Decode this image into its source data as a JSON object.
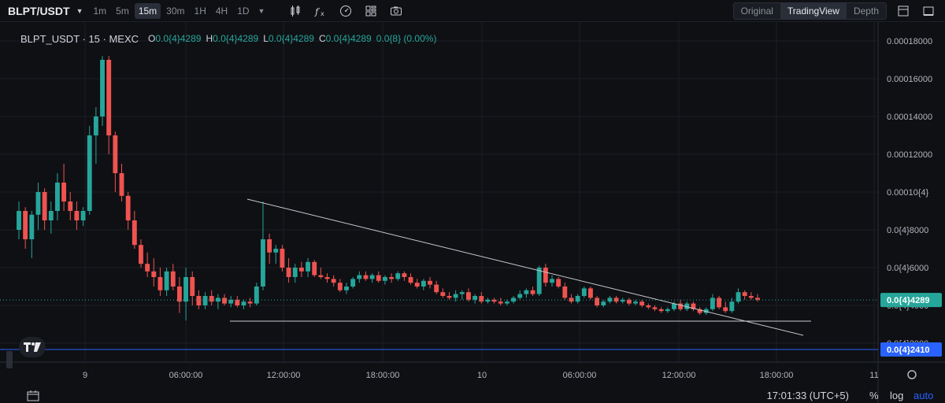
{
  "toolbar": {
    "symbol": "BLPT/USDT",
    "intervals": [
      "1m",
      "5m",
      "15m",
      "30m",
      "1H",
      "4H",
      "1D"
    ],
    "active_interval": "15m",
    "views": [
      "Original",
      "TradingView",
      "Depth"
    ],
    "active_view": "TradingView"
  },
  "legend": {
    "symbol_line": "BLPT_USDT · 15 · MEXC",
    "open_label": "O",
    "open": "0.0{4}4289",
    "high_label": "H",
    "high": "0.0{4}4289",
    "low_label": "L",
    "low": "0.0{4}4289",
    "close_label": "C",
    "close": "0.0{4}4289",
    "change": "0.0{8} (0.00%)"
  },
  "price_axis": {
    "ticks": [
      "0.00018000",
      "0.00016000",
      "0.00014000",
      "0.00012000",
      "0.00010{4}",
      "0.0{4}8000",
      "0.0{4}6000",
      "0.0{4}4000",
      "0.0{4}2000"
    ],
    "last_price_label": "0.0{4}4289",
    "line_price_label": "0.0{4}2410"
  },
  "time_axis": {
    "ticks": [
      "9",
      "06:00:00",
      "12:00:00",
      "18:00:00",
      "10",
      "06:00:00",
      "12:00:00",
      "18:00:00",
      "11"
    ]
  },
  "bottom_bar": {
    "clock": "17:01:33 (UTC+5)",
    "percent": "%",
    "log": "log",
    "auto": "auto"
  },
  "colors": {
    "background": "#0f1014",
    "up": "#26a69a",
    "down": "#ef5350",
    "last_price_badge": "#26a69a",
    "horizontal_line": "#2962ff"
  },
  "chart_data": {
    "type": "candlestick",
    "interval": "15m",
    "price_unit": "USDT",
    "ylim": [
      1e-05,
      0.00019
    ],
    "last_price": 4.289e-05,
    "horizontal_line_price": 2.41e-05,
    "series": [
      {
        "o": 8e-05,
        "h": 9.5e-05,
        "l": 7.5e-05,
        "c": 9e-05
      },
      {
        "o": 9e-05,
        "h": 9.2e-05,
        "l": 7e-05,
        "c": 7.5e-05
      },
      {
        "o": 7.5e-05,
        "h": 9e-05,
        "l": 6.5e-05,
        "c": 8.8e-05
      },
      {
        "o": 8.8e-05,
        "h": 0.000105,
        "l": 8e-05,
        "c": 0.0001
      },
      {
        "o": 0.0001,
        "h": 0.000102,
        "l": 8e-05,
        "c": 8.5e-05
      },
      {
        "o": 8.5e-05,
        "h": 9.5e-05,
        "l": 7.8e-05,
        "c": 9e-05
      },
      {
        "o": 9e-05,
        "h": 0.00011,
        "l": 8.5e-05,
        "c": 0.000105
      },
      {
        "o": 0.000105,
        "h": 0.000115,
        "l": 9e-05,
        "c": 9.5e-05
      },
      {
        "o": 9.5e-05,
        "h": 0.0001,
        "l": 8.5e-05,
        "c": 9e-05
      },
      {
        "o": 9e-05,
        "h": 9.5e-05,
        "l": 8e-05,
        "c": 8.5e-05
      },
      {
        "o": 8.5e-05,
        "h": 9.2e-05,
        "l": 8.2e-05,
        "c": 9e-05
      },
      {
        "o": 9e-05,
        "h": 0.000135,
        "l": 8.8e-05,
        "c": 0.00013
      },
      {
        "o": 0.00013,
        "h": 0.000145,
        "l": 0.000115,
        "c": 0.00014
      },
      {
        "o": 0.00014,
        "h": 0.000172,
        "l": 0.000135,
        "c": 0.00017
      },
      {
        "o": 0.00017,
        "h": 0.000172,
        "l": 0.00012,
        "c": 0.00013
      },
      {
        "o": 0.00013,
        "h": 0.000132,
        "l": 0.0001,
        "c": 0.00011
      },
      {
        "o": 0.00011,
        "h": 0.000115,
        "l": 9.5e-05,
        "c": 9.8e-05
      },
      {
        "o": 9.8e-05,
        "h": 0.0001,
        "l": 8e-05,
        "c": 8.5e-05
      },
      {
        "o": 8.5e-05,
        "h": 9e-05,
        "l": 7e-05,
        "c": 7.2e-05
      },
      {
        "o": 7.2e-05,
        "h": 7.5e-05,
        "l": 6e-05,
        "c": 6.2e-05
      },
      {
        "o": 6.2e-05,
        "h": 6.8e-05,
        "l": 5.5e-05,
        "c": 5.8e-05
      },
      {
        "o": 5.8e-05,
        "h": 6.5e-05,
        "l": 5e-05,
        "c": 5.5e-05
      },
      {
        "o": 5.5e-05,
        "h": 6e-05,
        "l": 4.5e-05,
        "c": 4.8e-05
      },
      {
        "o": 4.8e-05,
        "h": 6e-05,
        "l": 4.5e-05,
        "c": 5.8e-05
      },
      {
        "o": 5.8e-05,
        "h": 6.2e-05,
        "l": 4.8e-05,
        "c": 5e-05
      },
      {
        "o": 5e-05,
        "h": 5.5e-05,
        "l": 3.6e-05,
        "c": 4.2e-05
      },
      {
        "o": 4.2e-05,
        "h": 6e-05,
        "l": 3.2e-05,
        "c": 5.5e-05
      },
      {
        "o": 5.5e-05,
        "h": 5.8e-05,
        "l": 4e-05,
        "c": 4.5e-05
      },
      {
        "o": 4.5e-05,
        "h": 4.8e-05,
        "l": 3.8e-05,
        "c": 4e-05
      },
      {
        "o": 4e-05,
        "h": 4.7e-05,
        "l": 3.8e-05,
        "c": 4.5e-05
      },
      {
        "o": 4.5e-05,
        "h": 4.8e-05,
        "l": 4e-05,
        "c": 4.2e-05
      },
      {
        "o": 4.2e-05,
        "h": 4.6e-05,
        "l": 3.8e-05,
        "c": 4.4e-05
      },
      {
        "o": 4.4e-05,
        "h": 4.6e-05,
        "l": 4e-05,
        "c": 4.1e-05
      },
      {
        "o": 4.1e-05,
        "h": 4.5e-05,
        "l": 3.9e-05,
        "c": 4.3e-05
      },
      {
        "o": 4.3e-05,
        "h": 4.5e-05,
        "l": 3.9e-05,
        "c": 4e-05
      },
      {
        "o": 4e-05,
        "h": 4.3e-05,
        "l": 3.8e-05,
        "c": 4.2e-05
      },
      {
        "o": 4.2e-05,
        "h": 4.4e-05,
        "l": 3.9e-05,
        "c": 4.1e-05
      },
      {
        "o": 4.1e-05,
        "h": 5.2e-05,
        "l": 4e-05,
        "c": 5e-05
      },
      {
        "o": 5e-05,
        "h": 9.5e-05,
        "l": 4.8e-05,
        "c": 7.5e-05
      },
      {
        "o": 7.5e-05,
        "h": 7.8e-05,
        "l": 6.2e-05,
        "c": 6.8e-05
      },
      {
        "o": 6.8e-05,
        "h": 7.2e-05,
        "l": 6.2e-05,
        "c": 7e-05
      },
      {
        "o": 7e-05,
        "h": 7.2e-05,
        "l": 5.8e-05,
        "c": 6e-05
      },
      {
        "o": 6e-05,
        "h": 6.5e-05,
        "l": 5.2e-05,
        "c": 5.5e-05
      },
      {
        "o": 5.5e-05,
        "h": 6.2e-05,
        "l": 5.2e-05,
        "c": 6e-05
      },
      {
        "o": 6e-05,
        "h": 6.3e-05,
        "l": 5.5e-05,
        "c": 5.8e-05
      },
      {
        "o": 5.8e-05,
        "h": 6.5e-05,
        "l": 5.5e-05,
        "c": 6.3e-05
      },
      {
        "o": 6.3e-05,
        "h": 6.4e-05,
        "l": 5.5e-05,
        "c": 5.6e-05
      },
      {
        "o": 5.6e-05,
        "h": 6e-05,
        "l": 5.4e-05,
        "c": 5.5e-05
      },
      {
        "o": 5.5e-05,
        "h": 5.7e-05,
        "l": 5.2e-05,
        "c": 5.4e-05
      },
      {
        "o": 5.4e-05,
        "h": 5.6e-05,
        "l": 5e-05,
        "c": 5.2e-05
      },
      {
        "o": 5.2e-05,
        "h": 5.4e-05,
        "l": 4.7e-05,
        "c": 4.8e-05
      },
      {
        "o": 4.8e-05,
        "h": 5.2e-05,
        "l": 4.6e-05,
        "c": 5e-05
      },
      {
        "o": 5e-05,
        "h": 5.5e-05,
        "l": 4.9e-05,
        "c": 5.4e-05
      },
      {
        "o": 5.4e-05,
        "h": 5.8e-05,
        "l": 5.2e-05,
        "c": 5.6e-05
      },
      {
        "o": 5.6e-05,
        "h": 5.8e-05,
        "l": 5.3e-05,
        "c": 5.4e-05
      },
      {
        "o": 5.4e-05,
        "h": 5.7e-05,
        "l": 5.2e-05,
        "c": 5.6e-05
      },
      {
        "o": 5.6e-05,
        "h": 5.8e-05,
        "l": 5.2e-05,
        "c": 5.3e-05
      },
      {
        "o": 5.3e-05,
        "h": 5.6e-05,
        "l": 5.1e-05,
        "c": 5.5e-05
      },
      {
        "o": 5.5e-05,
        "h": 5.7e-05,
        "l": 5.2e-05,
        "c": 5.4e-05
      },
      {
        "o": 5.4e-05,
        "h": 5.8e-05,
        "l": 5.3e-05,
        "c": 5.7e-05
      },
      {
        "o": 5.7e-05,
        "h": 5.8e-05,
        "l": 5.3e-05,
        "c": 5.5e-05
      },
      {
        "o": 5.5e-05,
        "h": 5.7e-05,
        "l": 5.1e-05,
        "c": 5.2e-05
      },
      {
        "o": 5.2e-05,
        "h": 5.4e-05,
        "l": 4.9e-05,
        "c": 5e-05
      },
      {
        "o": 5e-05,
        "h": 5.4e-05,
        "l": 4.8e-05,
        "c": 5.3e-05
      },
      {
        "o": 5.3e-05,
        "h": 5.5e-05,
        "l": 4.9e-05,
        "c": 5.1e-05
      },
      {
        "o": 5.1e-05,
        "h": 5.3e-05,
        "l": 4.6e-05,
        "c": 4.7e-05
      },
      {
        "o": 4.7e-05,
        "h": 4.9e-05,
        "l": 4.4e-05,
        "c": 4.5e-05
      },
      {
        "o": 4.5e-05,
        "h": 4.7e-05,
        "l": 4.3e-05,
        "c": 4.4e-05
      },
      {
        "o": 4.4e-05,
        "h": 4.8e-05,
        "l": 4.2e-05,
        "c": 4.6e-05
      },
      {
        "o": 4.6e-05,
        "h": 4.8e-05,
        "l": 4.3e-05,
        "c": 4.7e-05
      },
      {
        "o": 4.7e-05,
        "h": 4.9e-05,
        "l": 4.2e-05,
        "c": 4.3e-05
      },
      {
        "o": 4.3e-05,
        "h": 4.6e-05,
        "l": 4.1e-05,
        "c": 4.5e-05
      },
      {
        "o": 4.5e-05,
        "h": 4.7e-05,
        "l": 4.1e-05,
        "c": 4.2e-05
      },
      {
        "o": 4.2e-05,
        "h": 4.4e-05,
        "l": 4.1e-05,
        "c": 4.3e-05
      },
      {
        "o": 4.3e-05,
        "h": 4.4e-05,
        "l": 4.1e-05,
        "c": 4.2e-05
      },
      {
        "o": 4.2e-05,
        "h": 4.4e-05,
        "l": 4e-05,
        "c": 4.1e-05
      },
      {
        "o": 4.1e-05,
        "h": 4.3e-05,
        "l": 4e-05,
        "c": 4.2e-05
      },
      {
        "o": 4.2e-05,
        "h": 4.5e-05,
        "l": 4.1e-05,
        "c": 4.4e-05
      },
      {
        "o": 4.4e-05,
        "h": 4.8e-05,
        "l": 4.3e-05,
        "c": 4.6e-05
      },
      {
        "o": 4.6e-05,
        "h": 4.9e-05,
        "l": 4.4e-05,
        "c": 4.8e-05
      },
      {
        "o": 4.8e-05,
        "h": 5e-05,
        "l": 4.5e-05,
        "c": 4.6e-05
      },
      {
        "o": 4.6e-05,
        "h": 6.1e-05,
        "l": 4.5e-05,
        "c": 6e-05
      },
      {
        "o": 6e-05,
        "h": 6.2e-05,
        "l": 5e-05,
        "c": 5.2e-05
      },
      {
        "o": 5.2e-05,
        "h": 5.6e-05,
        "l": 5e-05,
        "c": 5.4e-05
      },
      {
        "o": 5.4e-05,
        "h": 5.5e-05,
        "l": 4.9e-05,
        "c": 5e-05
      },
      {
        "o": 5e-05,
        "h": 5.2e-05,
        "l": 4.3e-05,
        "c": 4.4e-05
      },
      {
        "o": 4.4e-05,
        "h": 4.6e-05,
        "l": 4.1e-05,
        "c": 4.2e-05
      },
      {
        "o": 4.2e-05,
        "h": 4.6e-05,
        "l": 4.1e-05,
        "c": 4.5e-05
      },
      {
        "o": 4.5e-05,
        "h": 5e-05,
        "l": 4.4e-05,
        "c": 4.9e-05
      },
      {
        "o": 4.9e-05,
        "h": 5e-05,
        "l": 4.3e-05,
        "c": 4.4e-05
      },
      {
        "o": 4.4e-05,
        "h": 4.5e-05,
        "l": 3.9e-05,
        "c": 4e-05
      },
      {
        "o": 4e-05,
        "h": 4.3e-05,
        "l": 3.9e-05,
        "c": 4.2e-05
      },
      {
        "o": 4.2e-05,
        "h": 4.5e-05,
        "l": 4.1e-05,
        "c": 4.4e-05
      },
      {
        "o": 4.4e-05,
        "h": 4.5e-05,
        "l": 4.1e-05,
        "c": 4.2e-05
      },
      {
        "o": 4.2e-05,
        "h": 4.4e-05,
        "l": 4.1e-05,
        "c": 4.3e-05
      },
      {
        "o": 4.3e-05,
        "h": 4.4e-05,
        "l": 4e-05,
        "c": 4.1e-05
      },
      {
        "o": 4.1e-05,
        "h": 4.3e-05,
        "l": 4e-05,
        "c": 4.2e-05
      },
      {
        "o": 4.2e-05,
        "h": 4.3e-05,
        "l": 3.9e-05,
        "c": 4e-05
      },
      {
        "o": 4e-05,
        "h": 4.1e-05,
        "l": 3.8e-05,
        "c": 3.9e-05
      },
      {
        "o": 3.9e-05,
        "h": 4e-05,
        "l": 3.7e-05,
        "c": 3.8e-05
      },
      {
        "o": 3.8e-05,
        "h": 3.9e-05,
        "l": 3.6e-05,
        "c": 3.7e-05
      },
      {
        "o": 3.7e-05,
        "h": 3.9e-05,
        "l": 3.6e-05,
        "c": 3.8e-05
      },
      {
        "o": 3.8e-05,
        "h": 4.2e-05,
        "l": 3.7e-05,
        "c": 4.1e-05
      },
      {
        "o": 4.1e-05,
        "h": 4.3e-05,
        "l": 3.7e-05,
        "c": 3.8e-05
      },
      {
        "o": 3.8e-05,
        "h": 4.2e-05,
        "l": 3.7e-05,
        "c": 4.1e-05
      },
      {
        "o": 4.1e-05,
        "h": 4.2e-05,
        "l": 3.7e-05,
        "c": 3.8e-05
      },
      {
        "o": 3.8e-05,
        "h": 3.9e-05,
        "l": 3.5e-05,
        "c": 3.6e-05
      },
      {
        "o": 3.6e-05,
        "h": 3.9e-05,
        "l": 3.5e-05,
        "c": 3.8e-05
      },
      {
        "o": 3.8e-05,
        "h": 4.6e-05,
        "l": 3.7e-05,
        "c": 4.4e-05
      },
      {
        "o": 4.4e-05,
        "h": 4.5e-05,
        "l": 3.8e-05,
        "c": 3.9e-05
      },
      {
        "o": 3.9e-05,
        "h": 4.2e-05,
        "l": 3.6e-05,
        "c": 3.7e-05
      },
      {
        "o": 3.7e-05,
        "h": 4.4e-05,
        "l": 3.6e-05,
        "c": 4.2e-05
      },
      {
        "o": 4.2e-05,
        "h": 4.9e-05,
        "l": 4.1e-05,
        "c": 4.7e-05
      },
      {
        "o": 4.7e-05,
        "h": 4.8e-05,
        "l": 4.3e-05,
        "c": 4.5e-05
      },
      {
        "o": 4.5e-05,
        "h": 4.7e-05,
        "l": 4.3e-05,
        "c": 4.4e-05
      },
      {
        "o": 4.4e-05,
        "h": 4.6e-05,
        "l": 4.2e-05,
        "c": 4.3e-05
      }
    ]
  }
}
